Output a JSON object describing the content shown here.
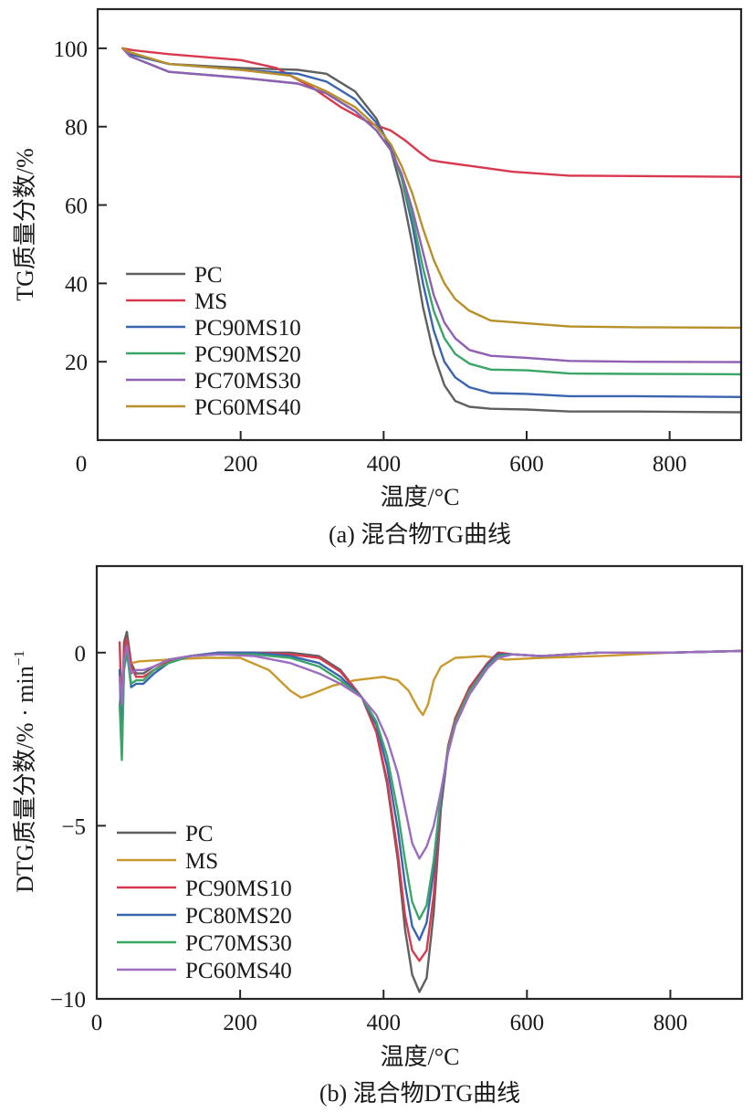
{
  "chart_data": [
    {
      "type": "line",
      "panel": "a",
      "caption": "(a) 混合物TG曲线",
      "xlabel": "温度/°C",
      "ylabel": "TG质量分数/%",
      "xlim": [
        0,
        900
      ],
      "ylim": [
        0,
        110
      ],
      "xticks": [
        0,
        200,
        400,
        600,
        800
      ],
      "yticks": [
        20,
        40,
        60,
        80,
        100
      ],
      "xtick_labels": [
        "0",
        "200",
        "400",
        "600",
        "800"
      ],
      "ytick_labels": [
        "20",
        "40",
        "60",
        "80",
        "100"
      ],
      "grid": false,
      "legend_position": "bottom-left",
      "series": [
        {
          "name": "PC",
          "color": "#606060",
          "x": [
            35,
            45,
            100,
            200,
            280,
            320,
            360,
            390,
            410,
            425,
            440,
            455,
            470,
            485,
            500,
            520,
            550,
            600,
            660,
            750,
            900
          ],
          "y": [
            100,
            98.5,
            96,
            95,
            94.5,
            93.5,
            89,
            82,
            74,
            64,
            50,
            34,
            22,
            14,
            10,
            8.5,
            8,
            7.8,
            7.3,
            7.3,
            7.1
          ]
        },
        {
          "name": "MS",
          "color": "#d9394e",
          "x": [
            35,
            50,
            100,
            200,
            250,
            300,
            340,
            380,
            410,
            430,
            450,
            465,
            480,
            520,
            580,
            660,
            750,
            900
          ],
          "y": [
            100,
            99.5,
            98.5,
            97,
            95,
            90,
            85,
            81,
            79,
            76.5,
            73.5,
            71.5,
            71,
            70,
            68.5,
            67.5,
            67.4,
            67.2
          ]
        },
        {
          "name": "PC90MS10",
          "color": "#3a64b0",
          "x": [
            35,
            45,
            100,
            200,
            280,
            320,
            360,
            390,
            410,
            425,
            440,
            455,
            470,
            485,
            500,
            520,
            550,
            600,
            660,
            750,
            900
          ],
          "y": [
            100,
            98.5,
            96,
            94.5,
            93.5,
            91.5,
            87,
            81,
            75,
            67,
            55,
            40,
            28,
            20,
            16,
            13.5,
            12,
            11.8,
            11.2,
            11.2,
            11
          ]
        },
        {
          "name": "PC90MS20",
          "color": "#3aa566",
          "x": [
            35,
            45,
            100,
            200,
            280,
            320,
            360,
            390,
            410,
            425,
            440,
            455,
            470,
            485,
            500,
            520,
            550,
            600,
            660,
            750,
            900
          ],
          "y": [
            100,
            98,
            94,
            92.5,
            91,
            88.5,
            84,
            79,
            74,
            67,
            57,
            44,
            33,
            26,
            22,
            19.5,
            18,
            17.8,
            17,
            16.9,
            16.8
          ]
        },
        {
          "name": "PC70MS30",
          "color": "#8e5fb3",
          "x": [
            35,
            45,
            100,
            200,
            280,
            320,
            360,
            390,
            410,
            425,
            440,
            455,
            470,
            485,
            500,
            520,
            550,
            600,
            660,
            750,
            900
          ],
          "y": [
            100,
            98,
            94,
            92.5,
            91,
            88.5,
            84,
            79,
            74,
            68,
            59,
            48,
            37,
            30,
            26,
            23,
            21.5,
            21,
            20.2,
            20,
            19.9
          ]
        },
        {
          "name": "PC60MS40",
          "color": "#b8902a",
          "x": [
            35,
            45,
            100,
            200,
            270,
            320,
            360,
            390,
            410,
            425,
            440,
            455,
            470,
            485,
            500,
            520,
            550,
            600,
            660,
            750,
            900
          ],
          "y": [
            100,
            99,
            96,
            94.5,
            93,
            89,
            85,
            80,
            75.5,
            70,
            63,
            54,
            46,
            40,
            36,
            33,
            30.5,
            29.8,
            29,
            28.8,
            28.7
          ]
        }
      ]
    },
    {
      "type": "line",
      "panel": "b",
      "caption": "(b) 混合物DTG曲线",
      "xlabel": "温度/°C",
      "ylabel": "DTG质量分数/%・min⁻¹",
      "ylabel_main": "DTG质量分数/% · min",
      "ylabel_sup": "−1",
      "xlim": [
        0,
        900
      ],
      "ylim": [
        -10,
        2.5
      ],
      "xticks": [
        0,
        200,
        400,
        600,
        800
      ],
      "yticks": [
        -10,
        -5,
        0
      ],
      "xtick_labels": [
        "0",
        "200",
        "400",
        "600",
        "800"
      ],
      "ytick_labels": [
        "−10",
        "−5",
        "0"
      ],
      "grid": false,
      "legend_position": "bottom-left",
      "series": [
        {
          "name": "PC",
          "color": "#606060",
          "x": [
            32,
            35,
            38,
            42,
            48,
            55,
            65,
            80,
            100,
            130,
            170,
            220,
            270,
            310,
            340,
            370,
            390,
            405,
            420,
            430,
            440,
            450,
            460,
            470,
            480,
            490,
            500,
            520,
            545,
            560,
            580,
            620,
            700,
            800,
            900
          ],
          "y": [
            -0.5,
            -2.0,
            0.3,
            0.6,
            -0.3,
            -0.6,
            -0.6,
            -0.4,
            -0.2,
            -0.1,
            0.0,
            0.0,
            0.0,
            -0.1,
            -0.5,
            -1.3,
            -2.3,
            -3.8,
            -6.0,
            -8.0,
            -9.3,
            -9.8,
            -9.4,
            -7.5,
            -4.5,
            -2.8,
            -1.9,
            -1.0,
            -0.3,
            0.0,
            -0.05,
            -0.1,
            0.0,
            0.0,
            0.05
          ]
        },
        {
          "name": "MS",
          "color": "#c9992e",
          "x": [
            32,
            35,
            38,
            42,
            48,
            60,
            100,
            150,
            200,
            240,
            270,
            285,
            300,
            330,
            360,
            380,
            400,
            420,
            435,
            448,
            455,
            462,
            470,
            480,
            500,
            540,
            570,
            620,
            700,
            800,
            900
          ],
          "y": [
            -1.5,
            -1.0,
            -0.3,
            0.0,
            -0.3,
            -0.25,
            -0.2,
            -0.15,
            -0.15,
            -0.5,
            -1.1,
            -1.3,
            -1.2,
            -0.95,
            -0.8,
            -0.75,
            -0.7,
            -0.8,
            -1.1,
            -1.6,
            -1.8,
            -1.5,
            -0.8,
            -0.4,
            -0.15,
            -0.1,
            -0.2,
            -0.15,
            -0.1,
            0.0,
            0.05
          ]
        },
        {
          "name": "PC90MS10",
          "color": "#d9394e",
          "x": [
            32,
            35,
            38,
            42,
            48,
            55,
            65,
            80,
            100,
            130,
            170,
            220,
            270,
            310,
            340,
            370,
            390,
            405,
            420,
            430,
            440,
            450,
            460,
            470,
            480,
            490,
            500,
            520,
            545,
            560,
            580,
            620,
            700,
            800,
            900
          ],
          "y": [
            0.3,
            -1.8,
            0.0,
            0.4,
            -0.4,
            -0.7,
            -0.7,
            -0.5,
            -0.25,
            -0.1,
            0.0,
            0.0,
            -0.05,
            -0.15,
            -0.55,
            -1.3,
            -2.3,
            -3.7,
            -5.8,
            -7.6,
            -8.6,
            -8.9,
            -8.6,
            -7.0,
            -4.3,
            -2.7,
            -1.9,
            -1.0,
            -0.3,
            0.0,
            -0.05,
            -0.1,
            0.0,
            0.0,
            0.05
          ]
        },
        {
          "name": "PC80MS20",
          "color": "#3a64b0",
          "x": [
            32,
            35,
            38,
            42,
            48,
            55,
            65,
            80,
            100,
            130,
            170,
            220,
            270,
            310,
            340,
            370,
            390,
            405,
            420,
            430,
            440,
            450,
            460,
            470,
            480,
            490,
            500,
            520,
            545,
            560,
            580,
            620,
            700,
            800,
            900
          ],
          "y": [
            -0.5,
            -2.8,
            -0.3,
            0.1,
            -1.0,
            -0.9,
            -0.9,
            -0.6,
            -0.3,
            -0.1,
            0.0,
            0.0,
            -0.1,
            -0.3,
            -0.7,
            -1.3,
            -2.1,
            -3.3,
            -5.1,
            -6.7,
            -7.9,
            -8.3,
            -7.8,
            -6.3,
            -4.2,
            -2.8,
            -2.0,
            -1.1,
            -0.35,
            -0.05,
            -0.05,
            -0.1,
            0.0,
            0.0,
            0.05
          ]
        },
        {
          "name": "PC70MS30",
          "color": "#3aa566",
          "x": [
            32,
            35,
            38,
            42,
            48,
            55,
            65,
            80,
            100,
            130,
            170,
            220,
            270,
            310,
            340,
            370,
            390,
            405,
            420,
            430,
            440,
            450,
            460,
            470,
            480,
            490,
            500,
            520,
            545,
            560,
            580,
            620,
            700,
            800,
            900
          ],
          "y": [
            -1.5,
            -3.1,
            -0.5,
            0.0,
            -0.9,
            -0.8,
            -0.8,
            -0.5,
            -0.3,
            -0.1,
            -0.05,
            -0.05,
            -0.15,
            -0.4,
            -0.8,
            -1.3,
            -2.0,
            -3.0,
            -4.6,
            -6.0,
            -7.2,
            -7.7,
            -7.3,
            -6.0,
            -4.1,
            -2.8,
            -2.0,
            -1.1,
            -0.4,
            -0.1,
            -0.05,
            -0.1,
            0.0,
            0.0,
            0.05
          ]
        },
        {
          "name": "PC60MS40",
          "color": "#9b6cc0",
          "x": [
            32,
            35,
            38,
            42,
            48,
            55,
            65,
            80,
            100,
            130,
            170,
            220,
            270,
            310,
            340,
            370,
            390,
            405,
            420,
            430,
            440,
            450,
            460,
            470,
            480,
            490,
            500,
            520,
            545,
            560,
            580,
            620,
            700,
            800,
            900
          ],
          "y": [
            -0.7,
            -1.5,
            -0.2,
            0.2,
            -0.6,
            -0.5,
            -0.5,
            -0.4,
            -0.2,
            -0.1,
            -0.05,
            -0.1,
            -0.3,
            -0.6,
            -0.9,
            -1.3,
            -1.8,
            -2.5,
            -3.5,
            -4.5,
            -5.5,
            -5.95,
            -5.6,
            -5.0,
            -4.0,
            -2.9,
            -2.1,
            -1.2,
            -0.45,
            -0.15,
            -0.05,
            -0.1,
            0.0,
            0.0,
            0.05
          ]
        }
      ]
    }
  ]
}
